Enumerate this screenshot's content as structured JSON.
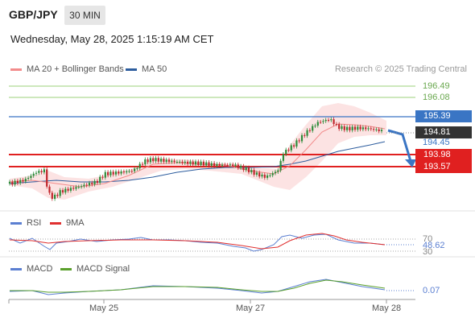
{
  "header": {
    "pair": "GBP/JPY",
    "timeframe": "30 MIN",
    "timestamp": "Wednesday, May 28, 2025 1:15:19 AM CET"
  },
  "legend": {
    "ma20": "MA 20 + Bollinger Bands",
    "ma50": "MA 50",
    "credit": "Research © 2025 Trading Central"
  },
  "levels": {
    "l1": "196.49",
    "l2": "196.08",
    "l3": "195.39",
    "current": "194.81",
    "l4": "194.45",
    "l5": "193.98",
    "l6": "193.57"
  },
  "rsi": {
    "label": "RSI",
    "ma_label": "9MA",
    "upper": "70",
    "value": "48.62",
    "lower": "30"
  },
  "macd": {
    "label": "MACD",
    "signal_label": "MACD Signal",
    "value": "0.07"
  },
  "xaxis": {
    "d1": "May 25",
    "d2": "May 27",
    "d3": "May 28"
  },
  "colors": {
    "price_up": "#2e8b3a",
    "price_down": "#c0262c",
    "ma20": "#f28b8b",
    "ma50": "#2d5d9e",
    "bollinger": "#fbd8d8",
    "resistance_green": "#9bd07a",
    "blue_level": "#3a75c4",
    "red_level": "#e02020",
    "rsi": "#5b7fd1",
    "rsi_ma": "#e03030",
    "macd": "#5b7fd1",
    "macd_signal": "#5aa02c"
  }
}
